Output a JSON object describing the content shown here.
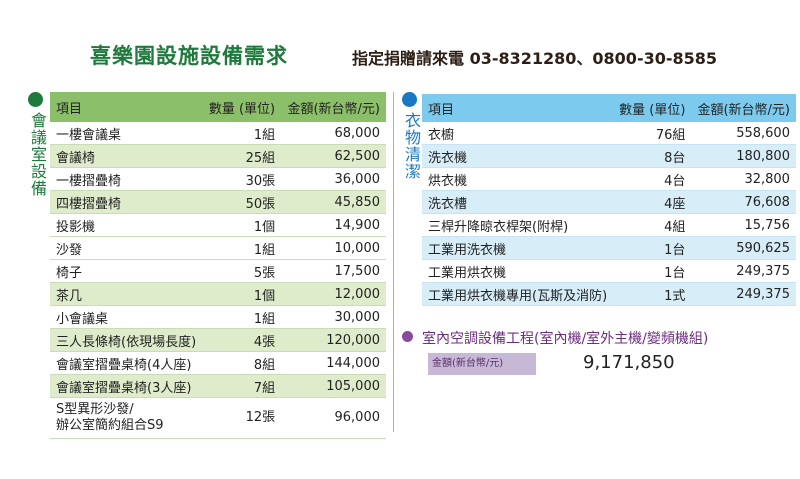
{
  "header": {
    "title": "喜樂園設施設備需求",
    "contact": "指定捐贈請來電 03-8321280、0800-30-8585"
  },
  "colors": {
    "green_accent": "#1e7a3c",
    "blue_accent": "#1a78c2",
    "purple_accent": "#6d2f80"
  },
  "meeting": {
    "section_label": "會議室設備",
    "columns": [
      "項目",
      "數量 (單位)",
      "金額(新台幣/元)"
    ],
    "rows": [
      {
        "item": "一樓會議桌",
        "qty": "1組",
        "amount": "68,000"
      },
      {
        "item": "會議椅",
        "qty": "25組",
        "amount": "62,500"
      },
      {
        "item": "一樓摺疊椅",
        "qty": "30張",
        "amount": "36,000"
      },
      {
        "item": "四樓摺疊椅",
        "qty": "50張",
        "amount": "45,850"
      },
      {
        "item": "投影機",
        "qty": "1個",
        "amount": "14,900"
      },
      {
        "item": "沙發",
        "qty": "1組",
        "amount": "10,000"
      },
      {
        "item": "椅子",
        "qty": "5張",
        "amount": "17,500"
      },
      {
        "item": "茶几",
        "qty": "1個",
        "amount": "12,000"
      },
      {
        "item": "小會議桌",
        "qty": "1組",
        "amount": "30,000"
      },
      {
        "item": "三人長條椅(依現場長度)",
        "qty": "4張",
        "amount": "120,000"
      },
      {
        "item": "會議室摺疊桌椅(4人座)",
        "qty": "8組",
        "amount": "144,000"
      },
      {
        "item": "會議室摺疊桌椅(3人座)",
        "qty": "7組",
        "amount": "105,000"
      },
      {
        "item": "S型異形沙發/",
        "item2": "辦公室簡約組合S9",
        "qty": "12張",
        "amount": "96,000"
      }
    ]
  },
  "laundry": {
    "section_label": "衣物清潔",
    "columns": [
      "項目",
      "數量 (單位)",
      "金額(新台幣/元)"
    ],
    "rows": [
      {
        "item": "衣櫥",
        "qty": "76組",
        "amount": "558,600"
      },
      {
        "item": "洗衣機",
        "qty": "8台",
        "amount": "180,800"
      },
      {
        "item": "烘衣機",
        "qty": "4台",
        "amount": "32,800"
      },
      {
        "item": "洗衣槽",
        "qty": "4座",
        "amount": "76,608"
      },
      {
        "item": "三桿升降晾衣桿架(附桿)",
        "qty": "4組",
        "amount": "15,756"
      },
      {
        "item": "工業用洗衣機",
        "qty": "1台",
        "amount": "590,625"
      },
      {
        "item": "工業用烘衣機",
        "qty": "1台",
        "amount": "249,375"
      },
      {
        "item": "工業用烘衣機專用(瓦斯及消防)",
        "qty": "1式",
        "amount": "249,375"
      }
    ]
  },
  "aircon": {
    "title": "室內空調設備工程(室內機/室外主機/變頻機組)",
    "amount_label": "金額(新台幣/元)",
    "amount_value": "9,171,850"
  }
}
